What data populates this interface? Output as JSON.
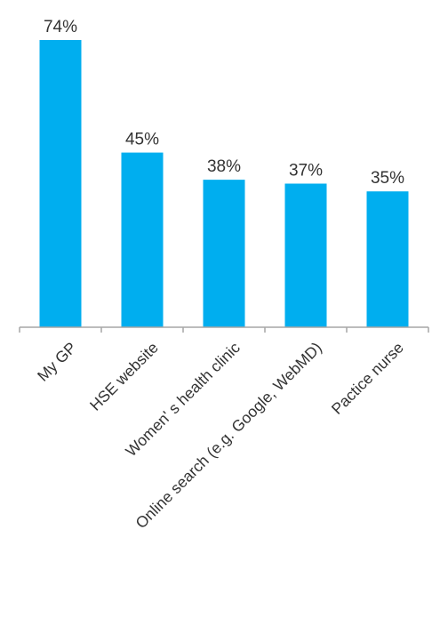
{
  "chart_data": {
    "type": "bar",
    "title": "",
    "xlabel": "",
    "ylabel": "",
    "categories": [
      "My GP",
      "HSE website",
      "Women' s health clinic",
      "Online search (e.g. Google, WebMD)",
      "Pactice nurse"
    ],
    "values": [
      74,
      45,
      38,
      37,
      35
    ],
    "data_labels": [
      "74%",
      "45%",
      "38%",
      "37%",
      "35%"
    ],
    "ylim": [
      0,
      74
    ],
    "grid": false,
    "legend": "none",
    "bar_color": "#00AEEF",
    "axis_color": "#A6A6A6"
  }
}
